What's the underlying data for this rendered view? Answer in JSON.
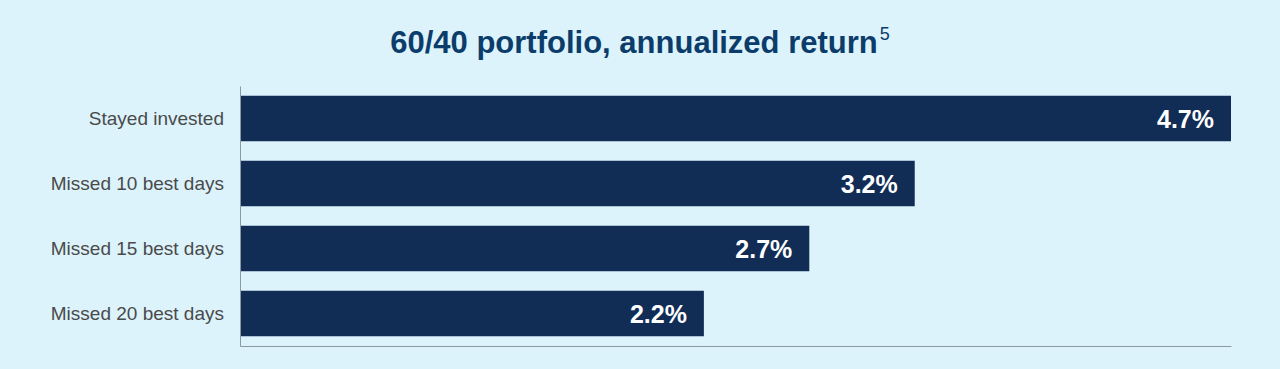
{
  "chart_data": {
    "type": "bar",
    "orientation": "horizontal",
    "title": "60/40 portfolio, annualized return",
    "title_note": "5",
    "categories": [
      "Stayed invested",
      "Missed 10 best days",
      "Missed 15 best days",
      "Missed 20 best days"
    ],
    "values": [
      4.7,
      3.2,
      2.7,
      2.2
    ],
    "value_labels": [
      "4.7%",
      "3.2%",
      "2.7%",
      "2.2%"
    ],
    "data_labels": true,
    "color": "#112d55",
    "xlim": [
      0,
      4.7
    ],
    "xticks": [],
    "tick_labels": "y",
    "grid": false
  }
}
